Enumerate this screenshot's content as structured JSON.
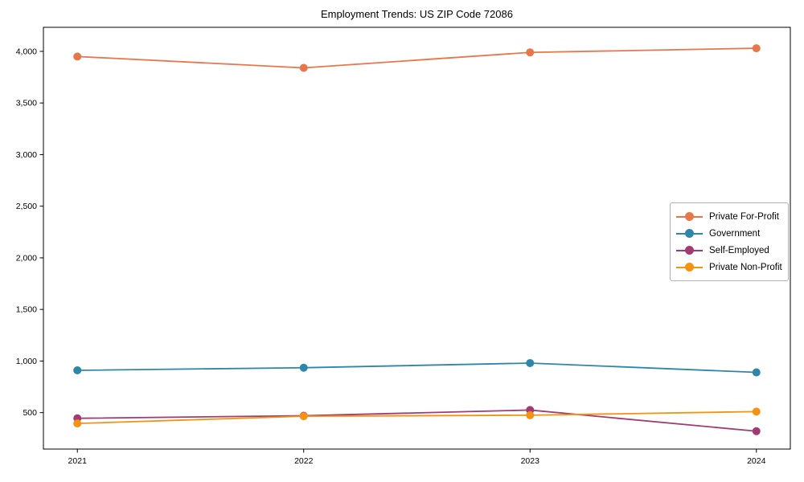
{
  "chart_data": {
    "type": "line",
    "title": "Employment Trends: US ZIP Code 72086",
    "xlabel": "",
    "ylabel": "",
    "x": [
      "2021",
      "2022",
      "2023",
      "2024"
    ],
    "series": [
      {
        "name": "Private For-Profit",
        "color": "#E8764B",
        "values": [
          3950,
          3840,
          3990,
          4030
        ]
      },
      {
        "name": "Government",
        "color": "#2E86AB",
        "values": [
          910,
          935,
          980,
          890
        ]
      },
      {
        "name": "Self-Employed",
        "color": "#A23B72",
        "values": [
          445,
          470,
          525,
          320
        ]
      },
      {
        "name": "Private Non-Profit",
        "color": "#F49312",
        "values": [
          395,
          465,
          475,
          510
        ]
      }
    ],
    "yticks": [
      500,
      1000,
      1500,
      2000,
      2500,
      3000,
      3500,
      4000
    ],
    "ytick_labels": [
      "500",
      "1,000",
      "1,500",
      "2,000",
      "2,500",
      "3,000",
      "3,500",
      "4,000"
    ],
    "ylim": [
      147,
      4233
    ],
    "grid": false,
    "legend_position": "center right",
    "marker": "circle",
    "axis_color": "#000000"
  }
}
